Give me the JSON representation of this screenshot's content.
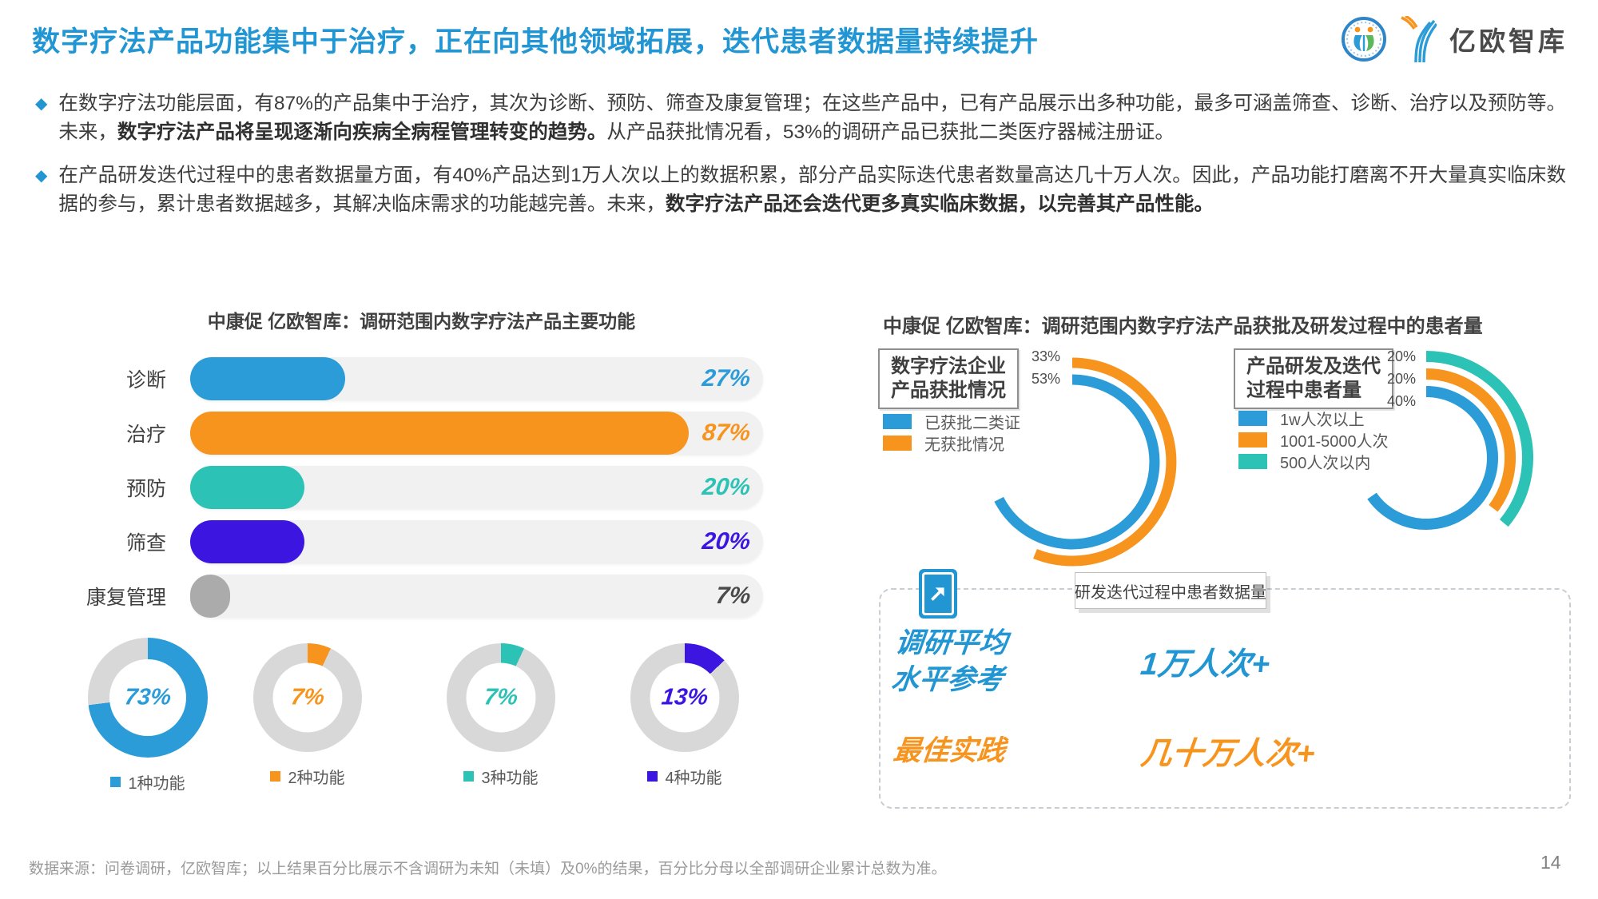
{
  "header": {
    "title": "数字疗法产品功能集中于治疗，正在向其他领域拓展，迭代患者数据量持续提升",
    "brand": "亿欧智库"
  },
  "bullets": [
    {
      "pre": "在数字疗法功能层面，有87%的产品集中于治疗，其次为诊断、预防、筛查及康复管理；在这些产品中，已有产品展示出多种功能，最多可涵盖筛查、诊断、治疗以及预防等。未来，",
      "bold": "数字疗法产品将呈现逐渐向疾病全病程管理转变的趋势。",
      "post": "从产品获批情况看，53%的调研产品已获批二类医疗器械注册证。"
    },
    {
      "pre": "在产品研发迭代过程中的患者数据量方面，有40%产品达到1万人次以上的数据积累，部分产品实际迭代患者数量高达几十万人次。因此，产品功能打磨离不开大量真实临床数据的参与，累计患者数据越多，其解决临床需求的功能越完善。未来，",
      "bold": "数字疗法产品还会迭代更多真实临床数据，以完善其产品性能。",
      "post": ""
    }
  ],
  "chart_data": [
    {
      "type": "bar",
      "orientation": "horizontal",
      "title": "中康促 亿欧智库：调研范围内数字疗法产品主要功能",
      "categories": [
        "诊断",
        "治疗",
        "预防",
        "筛查",
        "康复管理"
      ],
      "values": [
        27,
        87,
        20,
        20,
        7
      ],
      "unit": "%",
      "xlim": [
        0,
        100
      ],
      "colors": [
        "#2B9CD8",
        "#F7941E",
        "#2CC2B5",
        "#3C16E0",
        "#ABABAB"
      ],
      "value_colors": [
        "#2B9CD8",
        "#F7941E",
        "#2CC2B5",
        "#3C16E0",
        "#4A4A4A"
      ],
      "track_color": "#F1F1F1"
    },
    {
      "type": "pie",
      "subtype": "donut-set",
      "remainder_color": "#D8D8D8",
      "donuts": [
        {
          "label": "1种功能",
          "value": 73,
          "color": "#2B9CD8"
        },
        {
          "label": "2种功能",
          "value": 7,
          "color": "#F7941E"
        },
        {
          "label": "3种功能",
          "value": 7,
          "color": "#2CC2B5"
        },
        {
          "label": "4种功能",
          "value": 13,
          "color": "#3C16E0"
        }
      ]
    },
    {
      "type": "pie",
      "subtype": "concentric-arcs",
      "title": "中康促 亿欧智库：调研范围内数字疗法产品获批及研发过程中的患者量",
      "groups": [
        {
          "box_label": [
            "数字疗法企业",
            "产品获批情况"
          ],
          "series": [
            {
              "label": "无获批情况",
              "value": 33,
              "color": "#F7941E",
              "sweep_deg": 202
            },
            {
              "label": "已获批二类证",
              "value": 53,
              "color": "#2B9CD8",
              "sweep_deg": 243
            }
          ],
          "legend": [
            {
              "label": "已获批二类证",
              "color": "#2B9CD8"
            },
            {
              "label": "无获批情况",
              "color": "#F7941E"
            }
          ]
        },
        {
          "box_label": [
            "产品研发及迭代",
            "过程中患者量"
          ],
          "series": [
            {
              "label": "500人次以内",
              "value": 20,
              "color": "#2CC2B5",
              "sweep_deg": 130
            },
            {
              "label": "1001-5000人次",
              "value": 20,
              "color": "#F7941E",
              "sweep_deg": 127
            },
            {
              "label": "1w人次以上",
              "value": 40,
              "color": "#2B9CD8",
              "sweep_deg": 235
            }
          ],
          "legend": [
            {
              "label": "1w人次以上",
              "color": "#2B9CD8"
            },
            {
              "label": "1001-5000人次",
              "color": "#F7941E"
            },
            {
              "label": "500人次以内",
              "color": "#2CC2B5"
            }
          ]
        }
      ]
    }
  ],
  "reference_box": {
    "tab_label": "研发迭代过程中患者数据量",
    "rows": [
      {
        "label_lines": [
          "调研平均",
          "水平参考"
        ],
        "value": "1万人次+",
        "color": "#2196D3"
      },
      {
        "label_lines": [
          "最佳实践"
        ],
        "value": "几十万人次+",
        "color": "#F7941E"
      }
    ]
  },
  "footer": {
    "source": "数据来源：问卷调研，亿欧智库；以上结果百分比展示不含调研为未知（未填）及0%的结果，百分比分母以全部调研企业累计总数为准。",
    "page_number": "14"
  }
}
